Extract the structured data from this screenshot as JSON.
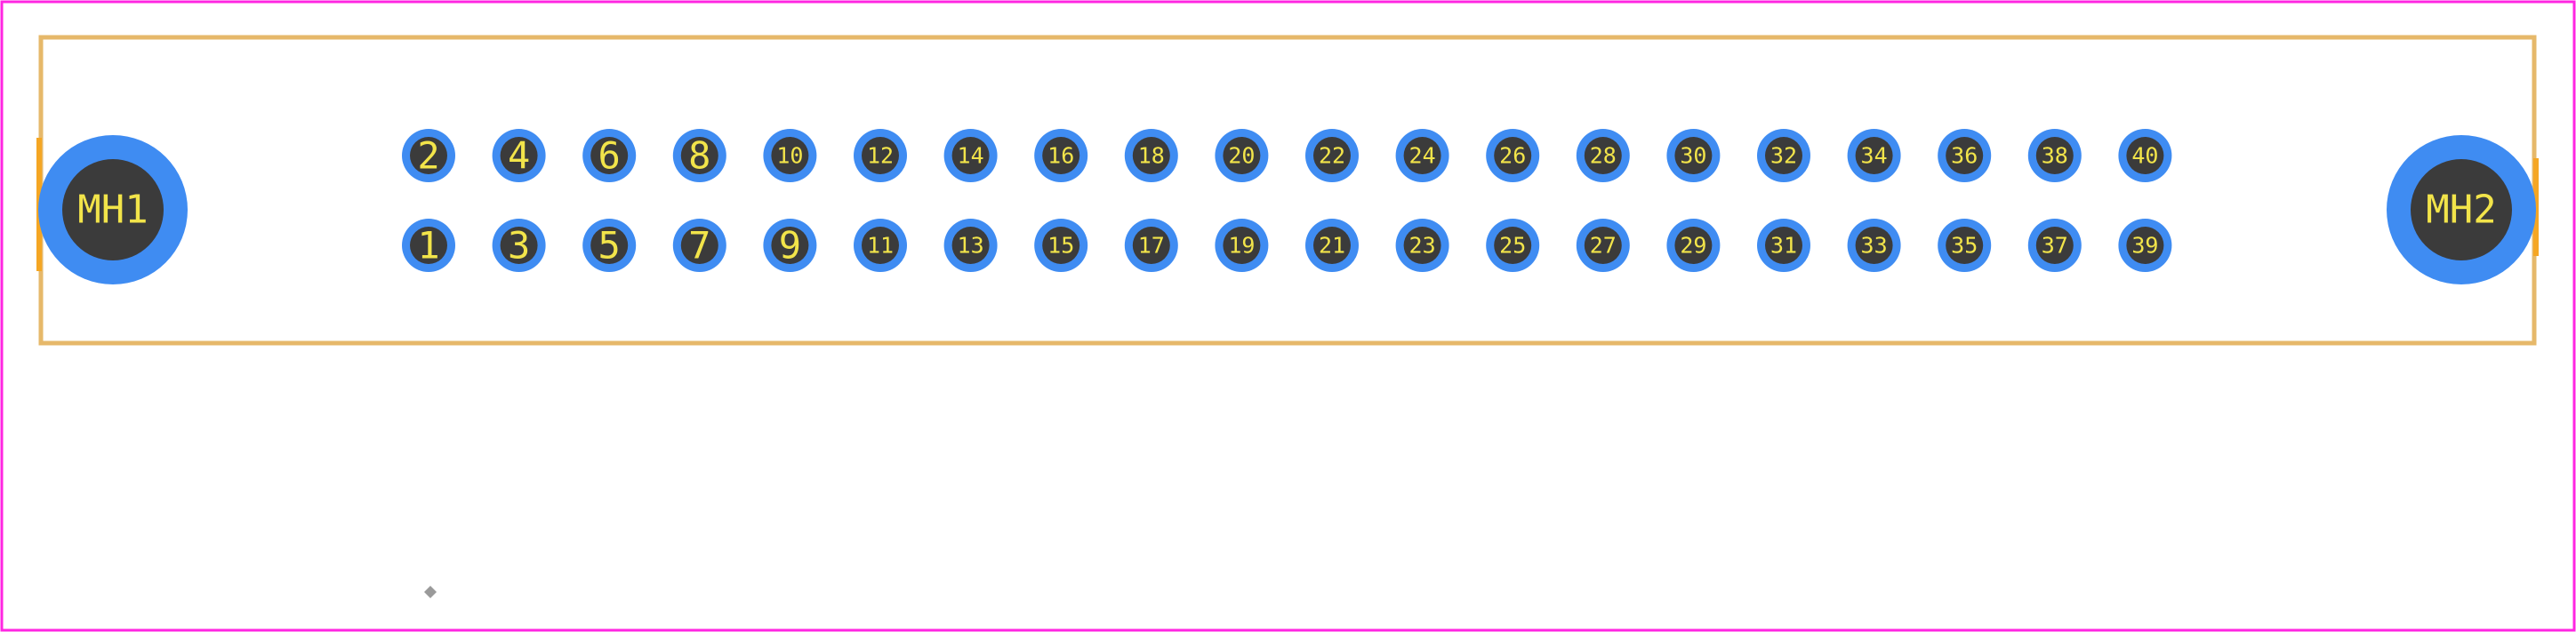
{
  "colors": {
    "background": "#ffffff",
    "board_outline": "#ff26e2",
    "silkscreen": "#e6b86a",
    "pad_ring": "#3f8cf2",
    "pad_hole": "#3b3b3b",
    "pad_text": "#f2e44a",
    "origin_marker": "#9a9a9a"
  },
  "mounting_holes": [
    {
      "label": "MH1"
    },
    {
      "label": "MH2"
    }
  ],
  "pads_top_row": [
    "2",
    "4",
    "6",
    "8",
    "10",
    "12",
    "14",
    "16",
    "18",
    "20",
    "22",
    "24",
    "26",
    "28",
    "30",
    "32",
    "34",
    "36",
    "38",
    "40"
  ],
  "pads_bottom_row": [
    "1",
    "3",
    "5",
    "7",
    "9",
    "11",
    "13",
    "15",
    "17",
    "19",
    "21",
    "23",
    "25",
    "27",
    "29",
    "31",
    "33",
    "35",
    "37",
    "39"
  ]
}
